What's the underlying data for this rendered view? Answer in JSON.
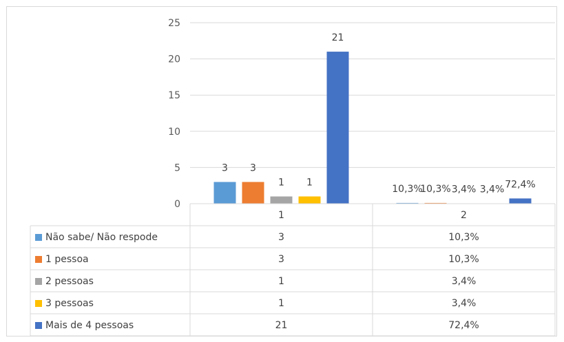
{
  "chart_data": {
    "type": "bar",
    "categories": [
      "1",
      "2"
    ],
    "ylim": [
      0,
      25
    ],
    "yticks": [
      "0",
      "5",
      "10",
      "15",
      "20",
      "25"
    ],
    "grid": true,
    "legend": "data-table",
    "series": [
      {
        "name": "Não  sabe/ Não respode",
        "color": "#5b9bd5",
        "values": [
          3,
          0.103
        ],
        "labels": [
          "3",
          "10,3%"
        ]
      },
      {
        "name": "1 pessoa",
        "color": "#ed7d31",
        "values": [
          3,
          0.103
        ],
        "labels": [
          "3",
          "10,3%"
        ]
      },
      {
        "name": "2 pessoas",
        "color": "#a5a5a5",
        "values": [
          1,
          0.034
        ],
        "labels": [
          "1",
          "3,4%"
        ]
      },
      {
        "name": "3 pessoas",
        "color": "#ffc000",
        "values": [
          1,
          0.034
        ],
        "labels": [
          "1",
          "3,4%"
        ]
      },
      {
        "name": "Mais de 4 pessoas",
        "color": "#4472c4",
        "values": [
          21,
          0.724
        ],
        "labels": [
          "21",
          "72,4%"
        ]
      }
    ]
  }
}
